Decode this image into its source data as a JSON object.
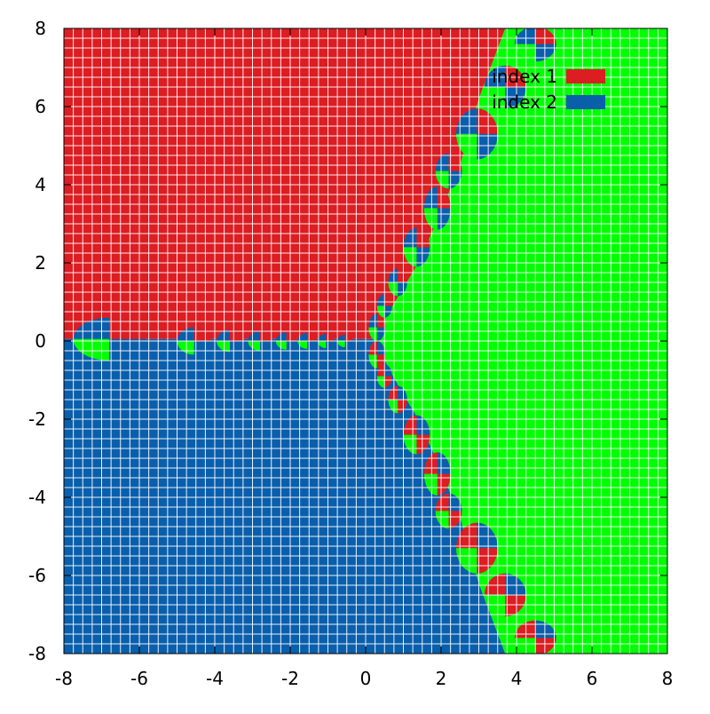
{
  "chart_data": {
    "type": "heatmap",
    "title": "",
    "xlabel": "",
    "ylabel": "",
    "xlim": [
      -8,
      8
    ],
    "ylim": [
      -8,
      8
    ],
    "xticks": [
      "-8",
      "-6",
      "-4",
      "-2",
      "0",
      "2",
      "4",
      "6",
      "8"
    ],
    "yticks": [
      "8",
      "6",
      "4",
      "2",
      "0",
      "-2",
      "-4",
      "-6",
      "-8"
    ],
    "grid": true,
    "grid_color": "#ffffff",
    "legend_position": "top-right",
    "legend": [
      {
        "label": "index 1",
        "color": "#dc1d22"
      },
      {
        "label": "index 2",
        "color": "#0a5fac"
      }
    ],
    "basins": [
      {
        "name": "red",
        "color": "#dc1d22"
      },
      {
        "name": "blue",
        "color": "#0a5fac"
      },
      {
        "name": "green",
        "color": "#00ff00"
      }
    ],
    "boundary_bulbs": [
      {
        "cx": -6.8,
        "cy": 0.05,
        "rx": 0.95,
        "ry": 0.55
      },
      {
        "cx": -4.55,
        "cy": 0.0,
        "rx": 0.45,
        "ry": 0.35
      },
      {
        "cx": -3.6,
        "cy": 0.0,
        "rx": 0.35,
        "ry": 0.28
      },
      {
        "cx": -2.8,
        "cy": 0.0,
        "rx": 0.32,
        "ry": 0.25
      },
      {
        "cx": -2.1,
        "cy": 0.0,
        "rx": 0.28,
        "ry": 0.22
      },
      {
        "cx": -1.55,
        "cy": 0.0,
        "rx": 0.25,
        "ry": 0.2
      },
      {
        "cx": -1.05,
        "cy": 0.0,
        "rx": 0.22,
        "ry": 0.18
      },
      {
        "cx": -0.55,
        "cy": 0.0,
        "rx": 0.2,
        "ry": 0.16
      },
      {
        "cx": 0.3,
        "cy": 0.35,
        "rx": 0.22,
        "ry": 0.35
      },
      {
        "cx": 0.5,
        "cy": 0.9,
        "rx": 0.2,
        "ry": 0.3
      },
      {
        "cx": 0.85,
        "cy": 1.5,
        "rx": 0.25,
        "ry": 0.35
      },
      {
        "cx": 1.35,
        "cy": 2.4,
        "rx": 0.35,
        "ry": 0.5
      },
      {
        "cx": 1.9,
        "cy": 3.4,
        "rx": 0.35,
        "ry": 0.55
      },
      {
        "cx": 2.2,
        "cy": 4.35,
        "rx": 0.35,
        "ry": 0.45
      },
      {
        "cx": 2.95,
        "cy": 5.3,
        "rx": 0.55,
        "ry": 0.65
      },
      {
        "cx": 3.7,
        "cy": 6.5,
        "rx": 0.55,
        "ry": 0.55
      },
      {
        "cx": 4.5,
        "cy": 7.6,
        "rx": 0.55,
        "ry": 0.45
      },
      {
        "cx": 0.3,
        "cy": -0.35,
        "rx": 0.22,
        "ry": 0.35
      },
      {
        "cx": 0.5,
        "cy": -0.9,
        "rx": 0.2,
        "ry": 0.3
      },
      {
        "cx": 0.85,
        "cy": -1.5,
        "rx": 0.25,
        "ry": 0.35
      },
      {
        "cx": 1.35,
        "cy": -2.4,
        "rx": 0.35,
        "ry": 0.5
      },
      {
        "cx": 1.9,
        "cy": -3.4,
        "rx": 0.35,
        "ry": 0.55
      },
      {
        "cx": 2.2,
        "cy": -4.35,
        "rx": 0.35,
        "ry": 0.45
      },
      {
        "cx": 2.95,
        "cy": -5.3,
        "rx": 0.55,
        "ry": 0.65
      },
      {
        "cx": 3.7,
        "cy": -6.5,
        "rx": 0.55,
        "ry": 0.55
      },
      {
        "cx": 4.5,
        "cy": -7.6,
        "rx": 0.55,
        "ry": 0.45
      }
    ]
  }
}
